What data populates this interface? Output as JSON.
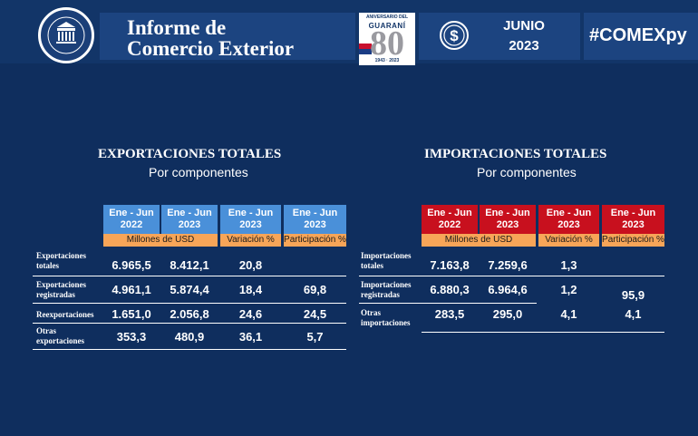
{
  "header": {
    "title_line1": "Informe de",
    "title_line2": "Comercio Exterior",
    "anniversary": {
      "top_text": "ANIVERSARIO DEL",
      "brand": "GUARANÍ",
      "number": "80",
      "years": "1943 · 2023"
    },
    "month": "JUNIO",
    "year": "2023",
    "hashtag": "#COMEXpy",
    "colors": {
      "header_bg": "#123568",
      "box_bg": "#1c4480",
      "page_bg": "#0f2e5e"
    }
  },
  "exports": {
    "title": "EXPORTACIONES TOTALES",
    "subtitle": "Por componentes",
    "columns": [
      {
        "line1": "Ene - Jun",
        "line2": "2022"
      },
      {
        "line1": "Ene - Jun",
        "line2": "2023"
      },
      {
        "line1": "Ene - Jun",
        "line2": "2023"
      },
      {
        "line1": "Ene - Jun",
        "line2": "2023"
      }
    ],
    "units": {
      "millones": "Millones de USD",
      "variacion": "Variación %",
      "participacion": "Participación %"
    },
    "rows": [
      {
        "label1": "Exportaciones",
        "label2": "totales",
        "v2022": "6.965,5",
        "v2023": "8.412,1",
        "var": "20,8",
        "part": ""
      },
      {
        "label1": "Exportaciones",
        "label2": "registradas",
        "v2022": "4.961,1",
        "v2023": "5.874,4",
        "var": "18,4",
        "part": "69,8"
      },
      {
        "label1": "Reexportaciones",
        "label2": "",
        "v2022": "1.651,0",
        "v2023": "2.056,8",
        "var": "24,6",
        "part": "24,5"
      },
      {
        "label1": "Otras",
        "label2": "exportaciones",
        "v2022": "353,3",
        "v2023": "480,9",
        "var": "36,1",
        "part": "5,7"
      }
    ],
    "header_color": "#4a90d9"
  },
  "imports": {
    "title": "IMPORTACIONES TOTALES",
    "subtitle": "Por componentes",
    "columns": [
      {
        "line1": "Ene - Jun",
        "line2": "2022"
      },
      {
        "line1": "Ene - Jun",
        "line2": "2023"
      },
      {
        "line1": "Ene - Jun",
        "line2": "2023"
      },
      {
        "line1": "Ene - Jun",
        "line2": "2023"
      }
    ],
    "units": {
      "millones": "Millones de USD",
      "variacion": "Variación %",
      "participacion": "Participación %"
    },
    "rows": [
      {
        "label1": "Importaciones",
        "label2": "totales",
        "v2022": "7.163,8",
        "v2023": "7.259,6",
        "var": "1,3",
        "part": ""
      },
      {
        "label1": "Importaciones",
        "label2": "registradas",
        "v2022": "6.880,3",
        "v2023": "6.964,6",
        "var": "1,2",
        "part": "95,9"
      },
      {
        "label1": "Otras",
        "label2": "importaciones",
        "v2022": "283,5",
        "v2023": "295,0",
        "var": "4,1",
        "part": "4,1"
      }
    ],
    "header_color": "#c8101e"
  },
  "unit_bar_color": "#f7a558"
}
